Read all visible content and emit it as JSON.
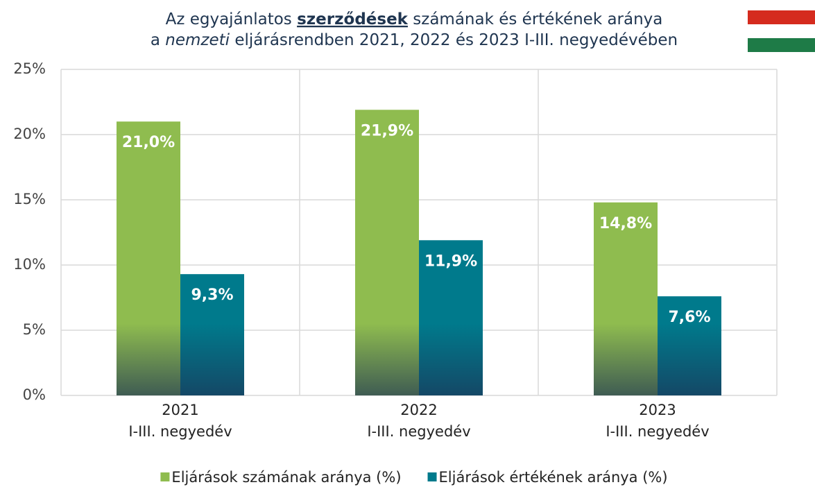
{
  "chart_data": {
    "type": "bar",
    "title": [
      [
        "Az egyajánlatos ",
        "szerződések",
        " számának és értékének aránya"
      ],
      [
        "a ",
        "nemzeti",
        " eljárásrendben 2021, 2022 és 2023 I-III. negyedévében"
      ]
    ],
    "categories": [
      [
        "2021",
        "I-III. negyedév"
      ],
      [
        "2022",
        "I-III. negyedév"
      ],
      [
        "2023",
        "I-III. negyedév"
      ]
    ],
    "series": [
      {
        "name": "Eljárások számának aránya (%)",
        "color": "#8fbc4f",
        "values": [
          21.0,
          21.9,
          14.8
        ],
        "value_labels": [
          "21,0%",
          "21,9%",
          "14,8%"
        ]
      },
      {
        "name": "Eljárások értékének aránya (%)",
        "color": "#007a8c",
        "values": [
          9.3,
          11.9,
          7.6
        ],
        "value_labels": [
          "9,3%",
          "11,9%",
          "7,6%"
        ]
      }
    ],
    "ylim": [
      0,
      25
    ],
    "yticks": [
      {
        "value": 0,
        "label": "0%"
      },
      {
        "value": 5,
        "label": "5%"
      },
      {
        "value": 10,
        "label": "10%"
      },
      {
        "value": 15,
        "label": "15%"
      },
      {
        "value": 20,
        "label": "20%"
      },
      {
        "value": 25,
        "label": "25%"
      }
    ],
    "grid": true,
    "legend": "bottom"
  }
}
